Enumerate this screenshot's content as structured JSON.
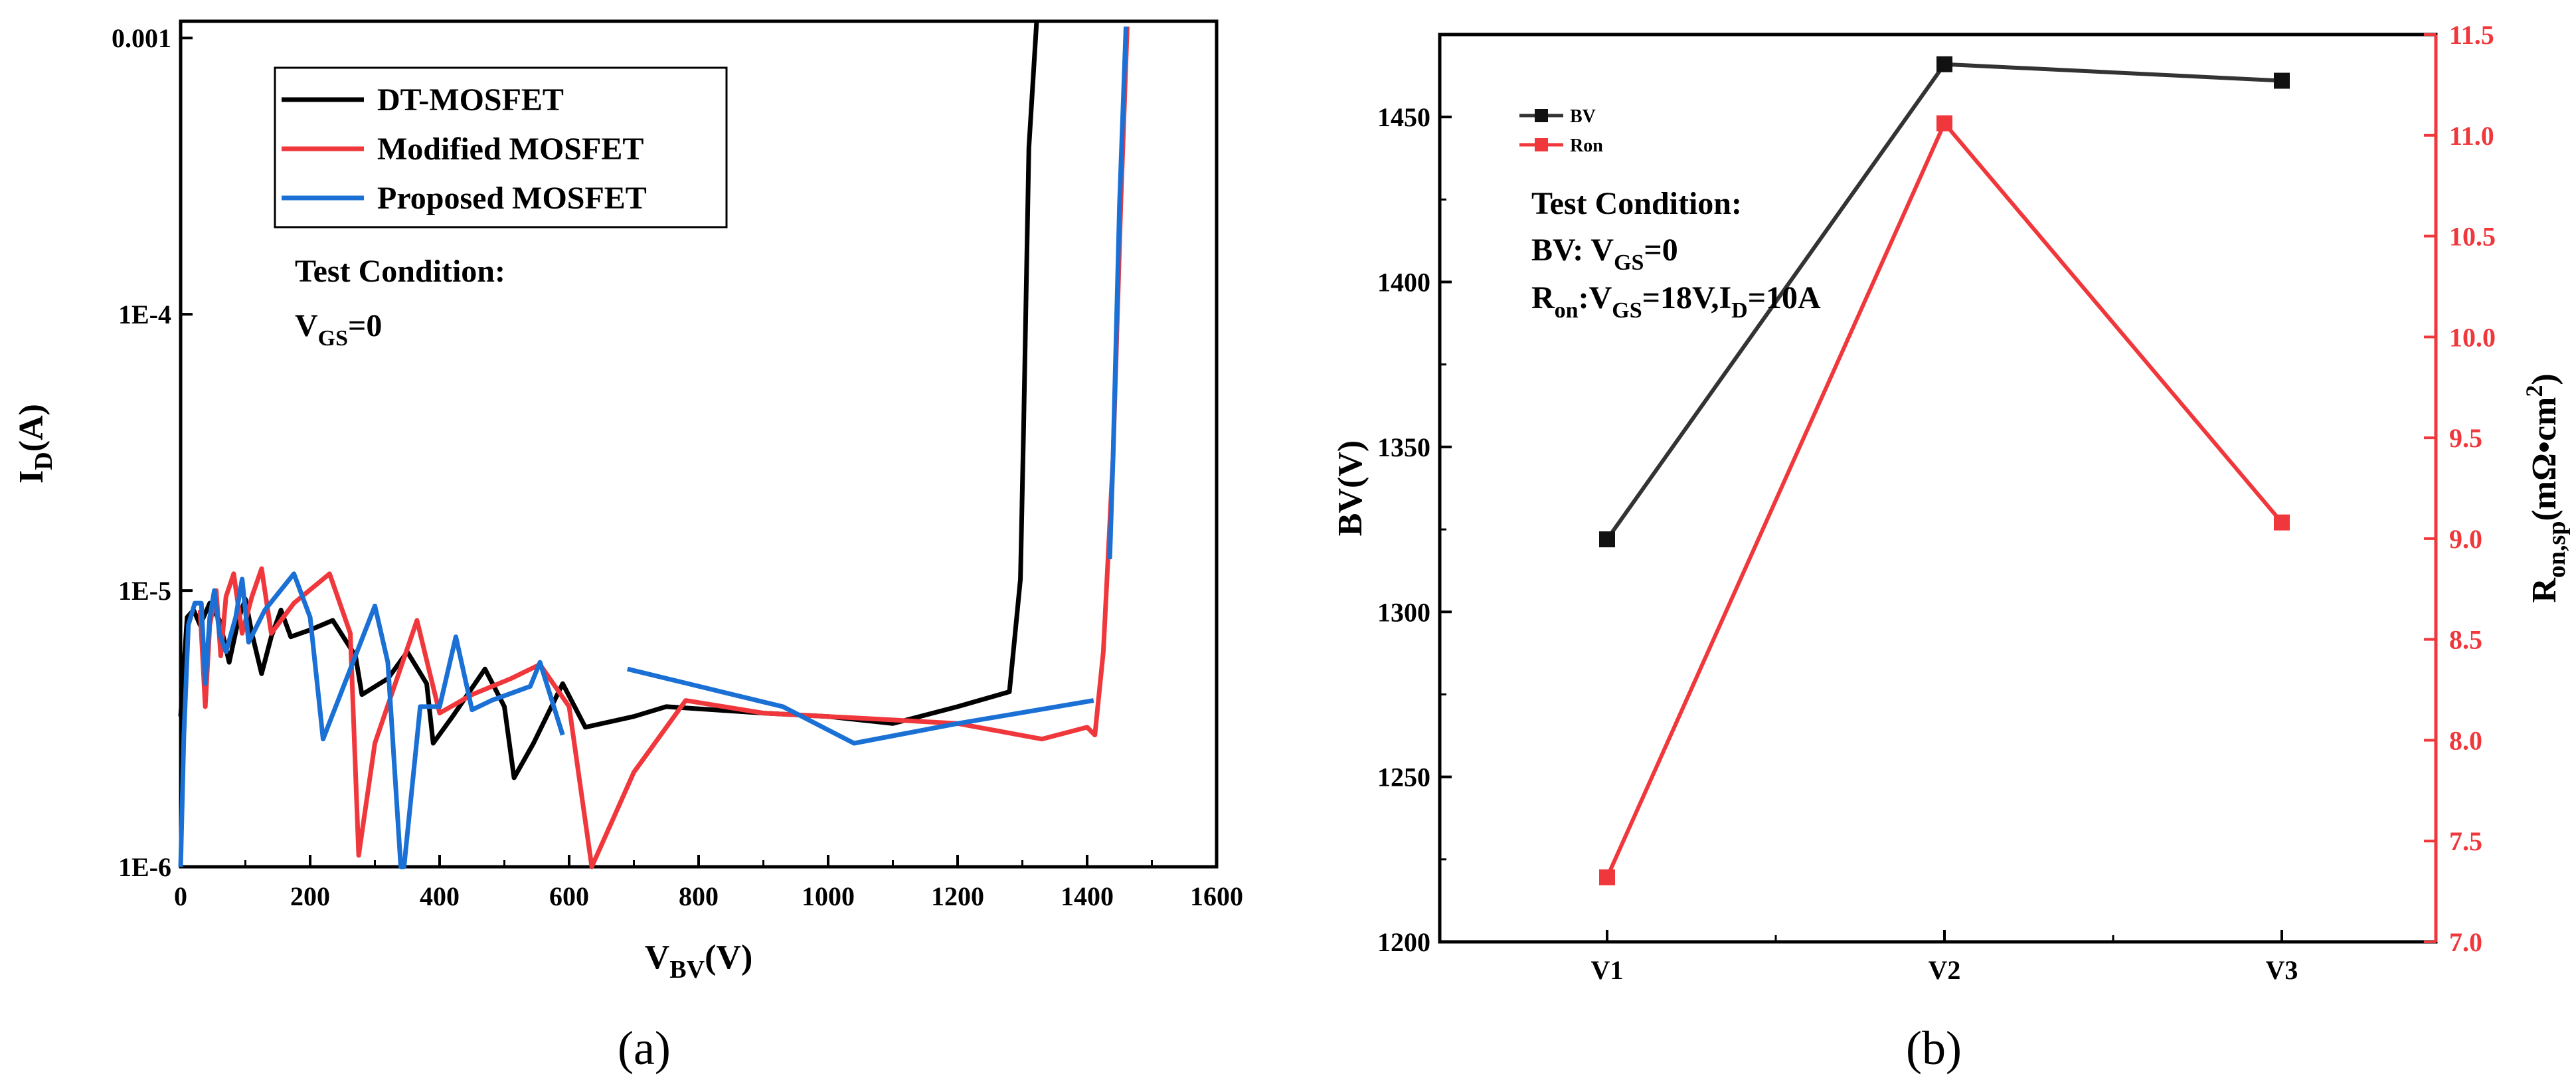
{
  "chart_data": [
    {
      "panel": "(a)",
      "type": "line",
      "xlabel_main": "V",
      "xlabel_sub": "BV",
      "xlabel_unit": "(V)",
      "ylabel_main": "I",
      "ylabel_sub": "D",
      "ylabel_unit": "(A)",
      "yscale": "log",
      "xlim": [
        0,
        1600
      ],
      "ylim": [
        1e-06,
        0.00115
      ],
      "xticks": [
        0,
        200,
        400,
        600,
        800,
        1000,
        1200,
        1400,
        1600
      ],
      "xtick_labels": [
        "0",
        "200",
        "400",
        "600",
        "800",
        "1000",
        "1200",
        "1400",
        "1600"
      ],
      "yticks": [
        1e-06,
        1e-05,
        0.0001,
        0.001
      ],
      "ytick_labels": [
        "1E-6",
        "1E-5",
        "1E-4",
        "0.001"
      ],
      "legend_position": "top-left",
      "annotation": {
        "line1": "Test Condition:",
        "line2_main": "V",
        "line2_sub": "GS",
        "line2_rest": "=0"
      },
      "series": [
        {
          "name": "DT-MOSFET",
          "color": "#000000",
          "points": [
            [
              0,
              3.5e-06
            ],
            [
              10,
              8e-06
            ],
            [
              20,
              8.5e-06
            ],
            [
              30,
              7.5e-06
            ],
            [
              45,
              9e-06
            ],
            [
              60,
              7.8e-06
            ],
            [
              75,
              5.5e-06
            ],
            [
              90,
              8e-06
            ],
            [
              100,
              9.3e-06
            ],
            [
              110,
              7e-06
            ],
            [
              125,
              5e-06
            ],
            [
              140,
              6.8e-06
            ],
            [
              155,
              8.5e-06
            ],
            [
              170,
              6.8e-06
            ],
            [
              200,
              7.2e-06
            ],
            [
              235,
              7.8e-06
            ],
            [
              270,
              5.8e-06
            ],
            [
              280,
              4.2e-06
            ],
            [
              320,
              4.8e-06
            ],
            [
              350,
              6e-06
            ],
            [
              380,
              4.6e-06
            ],
            [
              390,
              2.8e-06
            ],
            [
              420,
              3.5e-06
            ],
            [
              470,
              5.2e-06
            ],
            [
              500,
              3.8e-06
            ],
            [
              515,
              2.1e-06
            ],
            [
              545,
              2.8e-06
            ],
            [
              590,
              4.6e-06
            ],
            [
              625,
              3.2e-06
            ],
            [
              700,
              3.5e-06
            ],
            [
              750,
              3.8e-06
            ],
            [
              900,
              3.6e-06
            ],
            [
              1000,
              3.5e-06
            ],
            [
              1100,
              3.3e-06
            ],
            [
              1200,
              3.8e-06
            ],
            [
              1280,
              4.3e-06
            ],
            [
              1297,
              1.1e-05
            ],
            [
              1302,
              4e-05
            ],
            [
              1310,
              0.0004
            ],
            [
              1322,
              0.00115
            ]
          ]
        },
        {
          "name": "Modified MOSFET",
          "color": "#f0383c",
          "points": [
            [
              30,
              8.5e-06
            ],
            [
              38,
              3.8e-06
            ],
            [
              45,
              7.5e-06
            ],
            [
              55,
              1e-05
            ],
            [
              62,
              5.8e-06
            ],
            [
              70,
              9.5e-06
            ],
            [
              82,
              1.15e-05
            ],
            [
              95,
              7e-06
            ],
            [
              110,
              9.5e-06
            ],
            [
              125,
              1.2e-05
            ],
            [
              140,
              7e-06
            ],
            [
              175,
              9e-06
            ],
            [
              230,
              1.15e-05
            ],
            [
              262,
              7e-06
            ],
            [
              275,
              1.1e-06
            ],
            [
              300,
              2.8e-06
            ],
            [
              330,
              4.5e-06
            ],
            [
              365,
              7.8e-06
            ],
            [
              385,
              5e-06
            ],
            [
              400,
              3.6e-06
            ],
            [
              450,
              4.2e-06
            ],
            [
              510,
              4.8e-06
            ],
            [
              555,
              5.4e-06
            ],
            [
              600,
              3.8e-06
            ],
            [
              635,
              1e-06
            ],
            [
              700,
              2.2e-06
            ],
            [
              780,
              4e-06
            ],
            [
              900,
              3.6e-06
            ],
            [
              1000,
              3.5e-06
            ],
            [
              1100,
              3.4e-06
            ],
            [
              1200,
              3.3e-06
            ],
            [
              1330,
              2.9e-06
            ],
            [
              1400,
              3.2e-06
            ],
            [
              1412,
              3e-06
            ],
            [
              1425,
              6e-06
            ],
            [
              1440,
              3e-05
            ],
            [
              1452,
              0.00025
            ],
            [
              1462,
              0.0011
            ]
          ]
        },
        {
          "name": "Proposed MOSFET",
          "color": "#1a70d4",
          "points": [
            [
              0,
              1e-06
            ],
            [
              5,
              3e-06
            ],
            [
              12,
              7.5e-06
            ],
            [
              22,
              9e-06
            ],
            [
              32,
              9e-06
            ],
            [
              38,
              4.6e-06
            ],
            [
              45,
              8e-06
            ],
            [
              52,
              1e-05
            ],
            [
              60,
              7e-06
            ],
            [
              70,
              6e-06
            ],
            [
              85,
              8e-06
            ],
            [
              95,
              1.1e-05
            ],
            [
              105,
              6.5e-06
            ],
            [
              130,
              8.5e-06
            ],
            [
              175,
              1.15e-05
            ],
            [
              200,
              8e-06
            ],
            [
              220,
              2.9e-06
            ],
            [
              300,
              8.8e-06
            ],
            [
              320,
              5.5e-06
            ],
            [
              340,
              1e-06
            ],
            [
              345,
              1e-06
            ],
            [
              370,
              3.8e-06
            ],
            [
              400,
              3.8e-06
            ],
            [
              425,
              6.8e-06
            ],
            [
              450,
              3.7e-06
            ],
            [
              480,
              4e-06
            ],
            [
              540,
              4.5e-06
            ],
            [
              555,
              5.5e-06
            ],
            [
              590,
              3e-06
            ],
            [
              null,
              null
            ],
            [
              690,
              5.2e-06
            ],
            [
              930,
              3.8e-06
            ],
            [
              1040,
              2.8e-06
            ],
            [
              1200,
              3.3e-06
            ],
            [
              1410,
              4e-06
            ],
            [
              null,
              null
            ],
            [
              1435,
              1.3e-05
            ],
            [
              1440,
              3e-05
            ],
            [
              1450,
              0.00025
            ],
            [
              1460,
              0.0011
            ]
          ]
        }
      ]
    },
    {
      "panel": "(b)",
      "type": "line",
      "xlabel": "",
      "ylabel": "BV(V)",
      "y2label_main": "R",
      "y2label_sub": "on,sp",
      "y2label_rest": "(mΩ•cm",
      "y2label_sup": "2",
      "y2label_end": ")",
      "categories": [
        "V1",
        "V2",
        "V3"
      ],
      "ylim": [
        1200,
        1475
      ],
      "y2lim": [
        7.0,
        11.5
      ],
      "yticks": [
        1200,
        1250,
        1300,
        1350,
        1400,
        1450
      ],
      "yticks2": [
        7.0,
        7.5,
        8.0,
        8.5,
        9.0,
        9.5,
        10.0,
        10.5,
        11.0,
        11.5
      ],
      "ytick2_labels": [
        "7.0",
        "7.5",
        "8.0",
        "8.5",
        "9.0",
        "9.5",
        "10.0",
        "10.5",
        "11.0",
        "11.5"
      ],
      "legend_position": "top-left",
      "annotation": {
        "line1": "Test Condition:",
        "line2_a": "BV: V",
        "line2_sub": "GS",
        "line2_b": "=0",
        "line3_a": "R",
        "line3_sub1": "on",
        "line3_b": ":V",
        "line3_sub2": "GS",
        "line3_c": "=18V,I",
        "line3_sub3": "D",
        "line3_d": "=10A"
      },
      "series": [
        {
          "name": "BV",
          "color": "#333333",
          "axis": "left",
          "values": [
            1322,
            1466,
            1461
          ]
        },
        {
          "name": "Ron",
          "color": "#f0383c",
          "axis": "right",
          "values": [
            7.32,
            11.06,
            9.08
          ]
        }
      ]
    }
  ]
}
